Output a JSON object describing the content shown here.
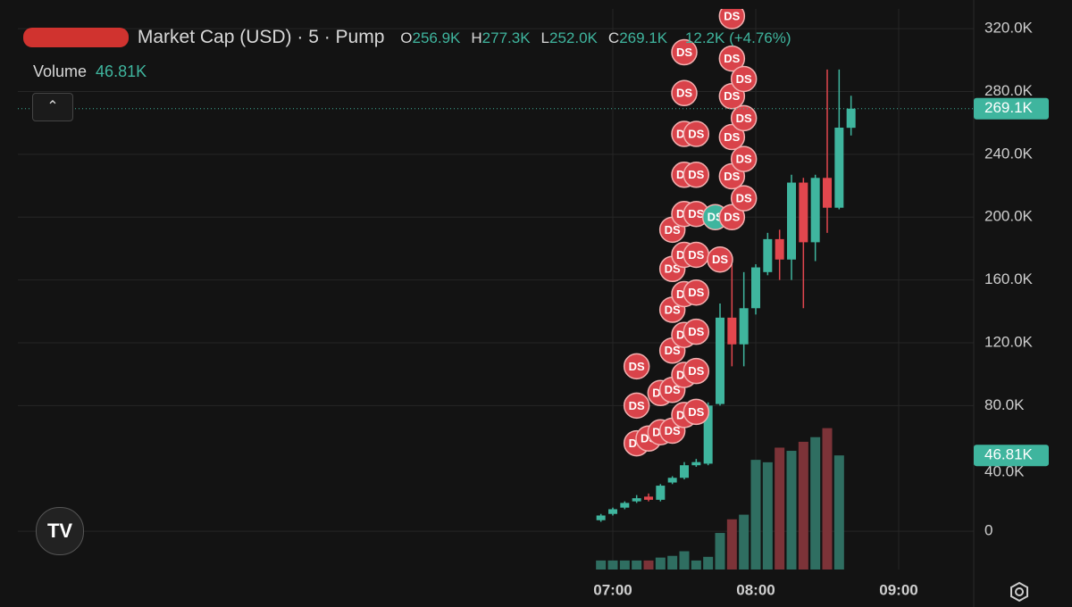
{
  "header": {
    "title": "Market Cap (USD) · 5 · Pump",
    "volume_label": "Volume",
    "volume_value": "46.81K",
    "ohlc": [
      {
        "key": "O",
        "value": "256.9K"
      },
      {
        "key": "H",
        "value": "277.3K"
      },
      {
        "key": "L",
        "value": "252.0K"
      },
      {
        "key": "C",
        "value": "269.1K"
      }
    ],
    "change": "12.2K (+4.76%)"
  },
  "chart_data": {
    "type": "candlestick",
    "x": [
      "06:55",
      "07:00",
      "07:05",
      "07:10",
      "07:15",
      "07:20",
      "07:25",
      "07:30",
      "07:35",
      "07:40",
      "07:45",
      "07:50",
      "07:55",
      "08:00",
      "08:05",
      "08:10",
      "08:15",
      "08:20",
      "08:25",
      "08:30",
      "08:35",
      "08:40"
    ],
    "open": [
      7000,
      11000,
      15000,
      19000,
      22000,
      20000,
      31000,
      34000,
      42000,
      43000,
      81000,
      136000,
      119000,
      142000,
      165000,
      186000,
      173000,
      222000,
      184000,
      225000,
      206000,
      256900
    ],
    "high": [
      11000,
      15000,
      19000,
      23000,
      24000,
      30000,
      35000,
      44000,
      46000,
      82000,
      145000,
      170000,
      165000,
      170000,
      190000,
      192000,
      227000,
      225000,
      227000,
      294000,
      294000,
      277300
    ],
    "low": [
      6000,
      10000,
      14000,
      18000,
      19000,
      19000,
      30000,
      33000,
      41000,
      42000,
      80000,
      105000,
      105000,
      138000,
      163000,
      160000,
      160000,
      142000,
      172000,
      190000,
      205000,
      252000
    ],
    "close": [
      10000,
      14000,
      18000,
      21000,
      20000,
      29000,
      34000,
      42000,
      44000,
      80000,
      136000,
      119000,
      142000,
      168000,
      186000,
      173000,
      222000,
      184000,
      225000,
      206000,
      257000,
      269100
    ],
    "volume": [
      3700,
      3700,
      3700,
      3700,
      3700,
      4900,
      5600,
      7500,
      3700,
      5200,
      15000,
      20600,
      22500,
      45000,
      44000,
      50000,
      48700,
      52400,
      54300,
      58000,
      46810,
      null
    ],
    "up_color": "#3fb59e",
    "down_color": "#e2474e",
    "up_volume_color": "#2f6e61",
    "down_volume_color": "#7c3338",
    "ylim": [
      -24400,
      332600
    ],
    "yticks": [
      {
        "value": 320000,
        "label": "320.0K"
      },
      {
        "value": 280000,
        "label": "280.0K"
      },
      {
        "value": 240000,
        "label": "240.0K"
      },
      {
        "value": 200000,
        "label": "200.0K"
      },
      {
        "value": 160000,
        "label": "160.0K"
      },
      {
        "value": 120000,
        "label": "120.0K"
      },
      {
        "value": 80000,
        "label": "80.0K"
      },
      0
    ],
    "vlim": [
      0,
      230000
    ],
    "vticks": [
      {
        "value": 40000,
        "label": "40.0K"
      }
    ],
    "xticks": [
      "07:00",
      "08:00",
      "09:00"
    ],
    "last_price": {
      "value": 269100,
      "label": "269.1K"
    },
    "last_volume": {
      "value": 46810,
      "label": "46.81K"
    },
    "grid": true,
    "markers": [
      {
        "label": "DS",
        "x": "07:10",
        "y": 105000
      },
      {
        "label": "DS",
        "x": "07:10",
        "y": 80000
      },
      {
        "label": "DS",
        "x": "07:10",
        "y": 56000
      },
      {
        "label": "DS",
        "x": "07:15",
        "y": 59000
      },
      {
        "label": "DS",
        "x": "07:20",
        "y": 88000
      },
      {
        "label": "DS",
        "x": "07:20",
        "y": 63000
      },
      {
        "label": "DS",
        "x": "07:25",
        "y": 192000
      },
      {
        "label": "DS",
        "x": "07:25",
        "y": 167000
      },
      {
        "label": "DS",
        "x": "07:25",
        "y": 141000
      },
      {
        "label": "DS",
        "x": "07:25",
        "y": 115000
      },
      {
        "label": "DS",
        "x": "07:25",
        "y": 90000
      },
      {
        "label": "DS",
        "x": "07:25",
        "y": 64000
      },
      {
        "label": "DS",
        "x": "07:30",
        "y": 305000
      },
      {
        "label": "DS",
        "x": "07:30",
        "y": 279000
      },
      {
        "label": "DS",
        "x": "07:30",
        "y": 253000
      },
      {
        "label": "DS",
        "x": "07:30",
        "y": 227000
      },
      {
        "label": "DS",
        "x": "07:30",
        "y": 202000
      },
      {
        "label": "DS",
        "x": "07:30",
        "y": 176000
      },
      {
        "label": "DS",
        "x": "07:30",
        "y": 151000
      },
      {
        "label": "DS",
        "x": "07:30",
        "y": 125000
      },
      {
        "label": "DS",
        "x": "07:30",
        "y": 99500
      },
      {
        "label": "DS",
        "x": "07:30",
        "y": 74000
      },
      {
        "label": "DS",
        "x": "07:35",
        "y": 253000
      },
      {
        "label": "DS",
        "x": "07:35",
        "y": 227000
      },
      {
        "label": "DS",
        "x": "07:35",
        "y": 202000
      },
      {
        "label": "DS",
        "x": "07:35",
        "y": 176000
      },
      {
        "label": "DS",
        "x": "07:35",
        "y": 152000
      },
      {
        "label": "DS",
        "x": "07:35",
        "y": 127000
      },
      {
        "label": "DS",
        "x": "07:35",
        "y": 102000
      },
      {
        "label": "DS",
        "x": "07:35",
        "y": 76000
      },
      {
        "label": "DS",
        "x": "07:43",
        "y": 200000,
        "color": "#3fb59e"
      },
      {
        "label": "DS",
        "x": "07:45",
        "y": 173000
      },
      {
        "label": "DS",
        "x": "07:50",
        "y": 328000
      },
      {
        "label": "DS",
        "x": "07:50",
        "y": 301000
      },
      {
        "label": "DS",
        "x": "07:50",
        "y": 277000
      },
      {
        "label": "DS",
        "x": "07:50",
        "y": 251000
      },
      {
        "label": "DS",
        "x": "07:50",
        "y": 226000
      },
      {
        "label": "DS",
        "x": "07:50",
        "y": 200000
      },
      {
        "label": "DS",
        "x": "07:55",
        "y": 288000
      },
      {
        "label": "DS",
        "x": "07:55",
        "y": 263000
      },
      {
        "label": "DS",
        "x": "07:55",
        "y": 237000
      },
      {
        "label": "DS",
        "x": "07:55",
        "y": 212000
      }
    ],
    "marker_color": "#d9434a"
  }
}
